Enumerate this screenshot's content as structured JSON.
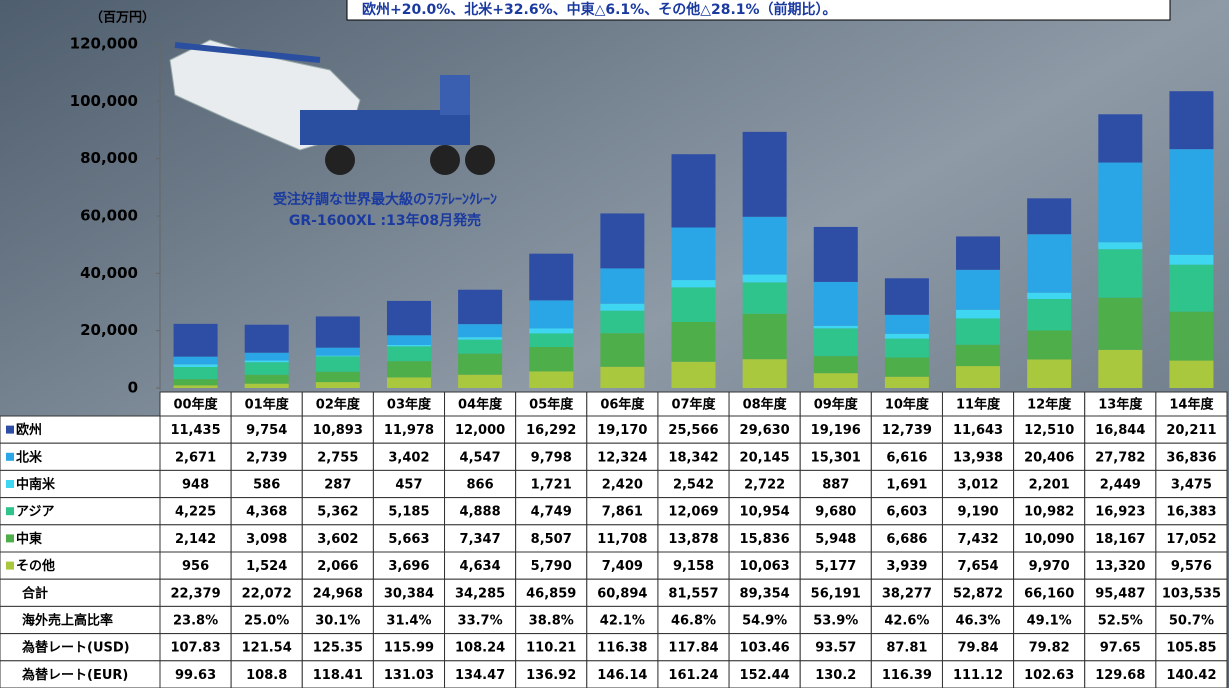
{
  "chart_data": {
    "type": "bar",
    "stacked": true,
    "unit_label": "（百万円）",
    "annotation": "欧州+20.0%、北米+32.6%、中東△6.1%、その他△28.1%（前期比）。",
    "caption": [
      "受注好調な世界最大級のﾗﾌﾃﾚｰﾝｸﾚｰﾝ",
      "GR-1600XL :13年08月発売"
    ],
    "categories": [
      "00年度",
      "01年度",
      "02年度",
      "03年度",
      "04年度",
      "05年度",
      "06年度",
      "07年度",
      "08年度",
      "09年度",
      "10年度",
      "11年度",
      "12年度",
      "13年度",
      "14年度"
    ],
    "series": [
      {
        "name": "欧州",
        "color": "#2e4ea6",
        "values": [
          11435,
          9754,
          10893,
          11978,
          12000,
          16292,
          19170,
          25566,
          29630,
          19196,
          12739,
          11643,
          12510,
          16844,
          20211
        ],
        "value_labels": [
          "11,435",
          "9,754",
          "10,893",
          "11,978",
          "12,000",
          "16,292",
          "19,170",
          "25,566",
          "29,630",
          "19,196",
          "12,739",
          "11,643",
          "12,510",
          "16,844",
          "20,211"
        ]
      },
      {
        "name": "北米",
        "color": "#2aa6e6",
        "values": [
          2671,
          2739,
          2755,
          3402,
          4547,
          9798,
          12324,
          18342,
          20145,
          15301,
          6616,
          13938,
          20406,
          27782,
          36836
        ],
        "value_labels": [
          "2,671",
          "2,739",
          "2,755",
          "3,402",
          "4,547",
          "9,798",
          "12,324",
          "18,342",
          "20,145",
          "15,301",
          "6,616",
          "13,938",
          "20,406",
          "27,782",
          "36,836"
        ]
      },
      {
        "name": "中南米",
        "color": "#3fd6f2",
        "values": [
          948,
          586,
          287,
          457,
          866,
          1721,
          2420,
          2542,
          2722,
          887,
          1691,
          3012,
          2201,
          2449,
          3475
        ],
        "value_labels": [
          "948",
          "586",
          "287",
          "457",
          "866",
          "1,721",
          "2,420",
          "2,542",
          "2,722",
          "887",
          "1,691",
          "3,012",
          "2,201",
          "2,449",
          "3,475"
        ]
      },
      {
        "name": "アジア",
        "color": "#2ec48c",
        "values": [
          4225,
          4368,
          5362,
          5185,
          4888,
          4749,
          7861,
          12069,
          10954,
          9680,
          6603,
          9190,
          10982,
          16923,
          16383
        ],
        "value_labels": [
          "4,225",
          "4,368",
          "5,362",
          "5,185",
          "4,888",
          "4,749",
          "7,861",
          "12,069",
          "10,954",
          "9,680",
          "6,603",
          "9,190",
          "10,982",
          "16,923",
          "16,383"
        ]
      },
      {
        "name": "中東",
        "color": "#4eae4a",
        "values": [
          2142,
          3098,
          3602,
          5663,
          7347,
          8507,
          11708,
          13878,
          15836,
          5948,
          6686,
          7432,
          10090,
          18167,
          17052
        ],
        "value_labels": [
          "2,142",
          "3,098",
          "3,602",
          "5,663",
          "7,347",
          "8,507",
          "11,708",
          "13,878",
          "15,836",
          "5,948",
          "6,686",
          "7,432",
          "10,090",
          "18,167",
          "17,052"
        ]
      },
      {
        "name": "その他",
        "color": "#a9c83e",
        "values": [
          956,
          1524,
          2066,
          3696,
          4634,
          5790,
          7409,
          9158,
          10063,
          5177,
          3939,
          7654,
          9970,
          13320,
          9576
        ],
        "value_labels": [
          "956",
          "1,524",
          "2,066",
          "3,696",
          "4,634",
          "5,790",
          "7,409",
          "9,158",
          "10,063",
          "5,177",
          "3,939",
          "7,654",
          "9,970",
          "13,320",
          "9,576"
        ]
      }
    ],
    "extra_rows": [
      {
        "name": "合計",
        "values": [
          22379,
          22072,
          24968,
          30384,
          34285,
          46859,
          60894,
          81557,
          89354,
          56191,
          38277,
          52872,
          66160,
          95487,
          103535
        ],
        "value_labels": [
          "22,379",
          "22,072",
          "24,968",
          "30,384",
          "34,285",
          "46,859",
          "60,894",
          "81,557",
          "89,354",
          "56,191",
          "38,277",
          "52,872",
          "66,160",
          "95,487",
          "103,535"
        ]
      },
      {
        "name": "海外売上高比率",
        "values": [
          23.8,
          25.0,
          30.1,
          31.4,
          33.7,
          38.8,
          42.1,
          46.8,
          54.9,
          53.9,
          42.6,
          46.3,
          49.1,
          52.5,
          50.7
        ],
        "value_labels": [
          "23.8%",
          "25.0%",
          "30.1%",
          "31.4%",
          "33.7%",
          "38.8%",
          "42.1%",
          "46.8%",
          "54.9%",
          "53.9%",
          "42.6%",
          "46.3%",
          "49.1%",
          "52.5%",
          "50.7%"
        ]
      },
      {
        "name": "為替レート(USD)",
        "values": [
          107.83,
          121.54,
          125.35,
          115.99,
          108.24,
          110.21,
          116.38,
          117.84,
          103.46,
          93.57,
          87.81,
          79.84,
          79.82,
          97.65,
          105.85
        ]
      },
      {
        "name": "為替レート(EUR)",
        "values": [
          99.63,
          108.8,
          118.41,
          131.03,
          134.47,
          136.92,
          146.14,
          161.24,
          152.44,
          130.2,
          116.39,
          111.12,
          102.63,
          129.68,
          140.42
        ]
      }
    ],
    "ylim": [
      0,
      120000
    ],
    "yticks": [
      0,
      {
        "value": 20000,
        "label": "20,000"
      },
      {
        "value": 40000,
        "label": "40,000"
      },
      {
        "value": 60000,
        "label": "60,000"
      },
      {
        "value": 80000,
        "label": "80,000"
      },
      {
        "value": 100000,
        "label": "100,000"
      },
      {
        "value": 120000,
        "label": "120,000"
      }
    ],
    "grid": false
  }
}
